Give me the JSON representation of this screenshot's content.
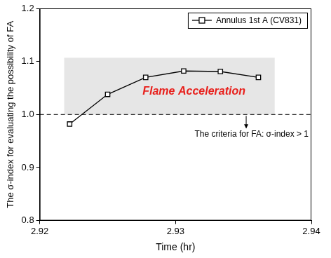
{
  "chart_data": {
    "type": "line",
    "x_label": "Time (hr)",
    "y_label": "The σ-index for evaluating the possibility of FA",
    "series": [
      {
        "name": "Annulus 1st A (CV831)",
        "color": "#000000",
        "marker": "square",
        "line_style": "solid",
        "x": [
          2.9222,
          2.925,
          2.9278,
          2.9306,
          2.9333,
          2.9361
        ],
        "values": [
          0.982,
          1.038,
          1.07,
          1.082,
          1.081,
          1.07
        ]
      }
    ],
    "xlim": [
      2.92,
      2.94
    ],
    "xticks": [
      2.92,
      2.93,
      2.94
    ],
    "ylim": [
      0.8,
      1.2
    ],
    "yticks": [
      0.8,
      0.9,
      {
        "value": 1,
        "label": "1.0"
      },
      1.1,
      1.2
    ],
    "grid": false,
    "legend": "upper right",
    "shaded_region": {
      "x": [
        2.9218,
        2.9373
      ],
      "y": [
        1.0,
        1.107
      ],
      "color": "#e6e6e6"
    },
    "threshold": {
      "value": 1,
      "line_style": "dashed",
      "color": "#000000"
    },
    "annotations": [
      {
        "text": "Flame Acceleration",
        "color": "#e8201c"
      },
      {
        "text": "The criteria for FA: σ-index > 1",
        "color": "#000000"
      }
    ]
  }
}
